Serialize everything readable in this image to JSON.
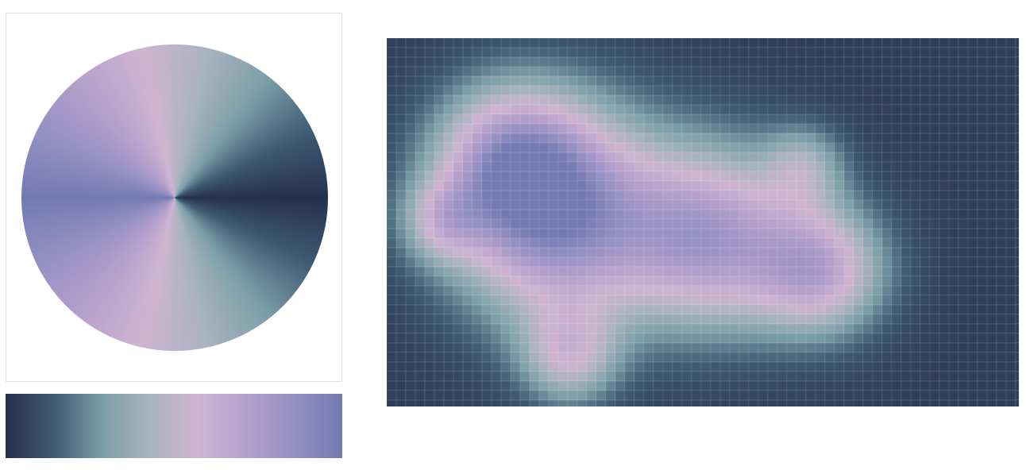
{
  "colormap": [
    "#25304f",
    "#3f5a72",
    "#7a9ea8",
    "#a8b3c0",
    "#d0b4d2",
    "#b5a0cc",
    "#9590c2",
    "#737ab2"
  ]
}
